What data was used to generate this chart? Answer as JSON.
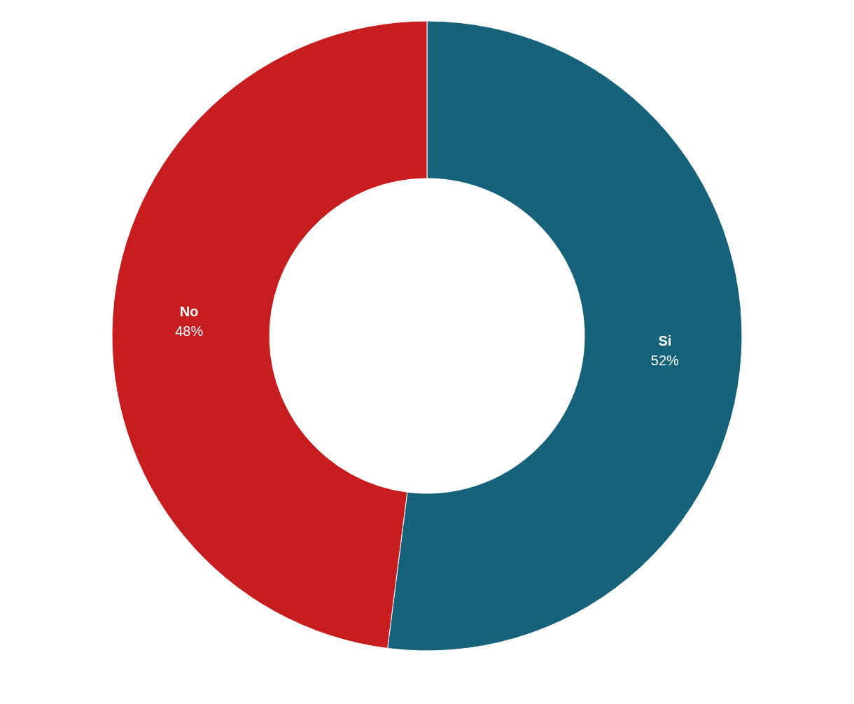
{
  "chart_data": {
    "type": "donut",
    "categories": [
      "Si",
      "No"
    ],
    "values": [
      52,
      48
    ],
    "value_labels": [
      "52%",
      "48%"
    ],
    "colors": [
      "#17627b",
      "#c81d1e"
    ]
  }
}
